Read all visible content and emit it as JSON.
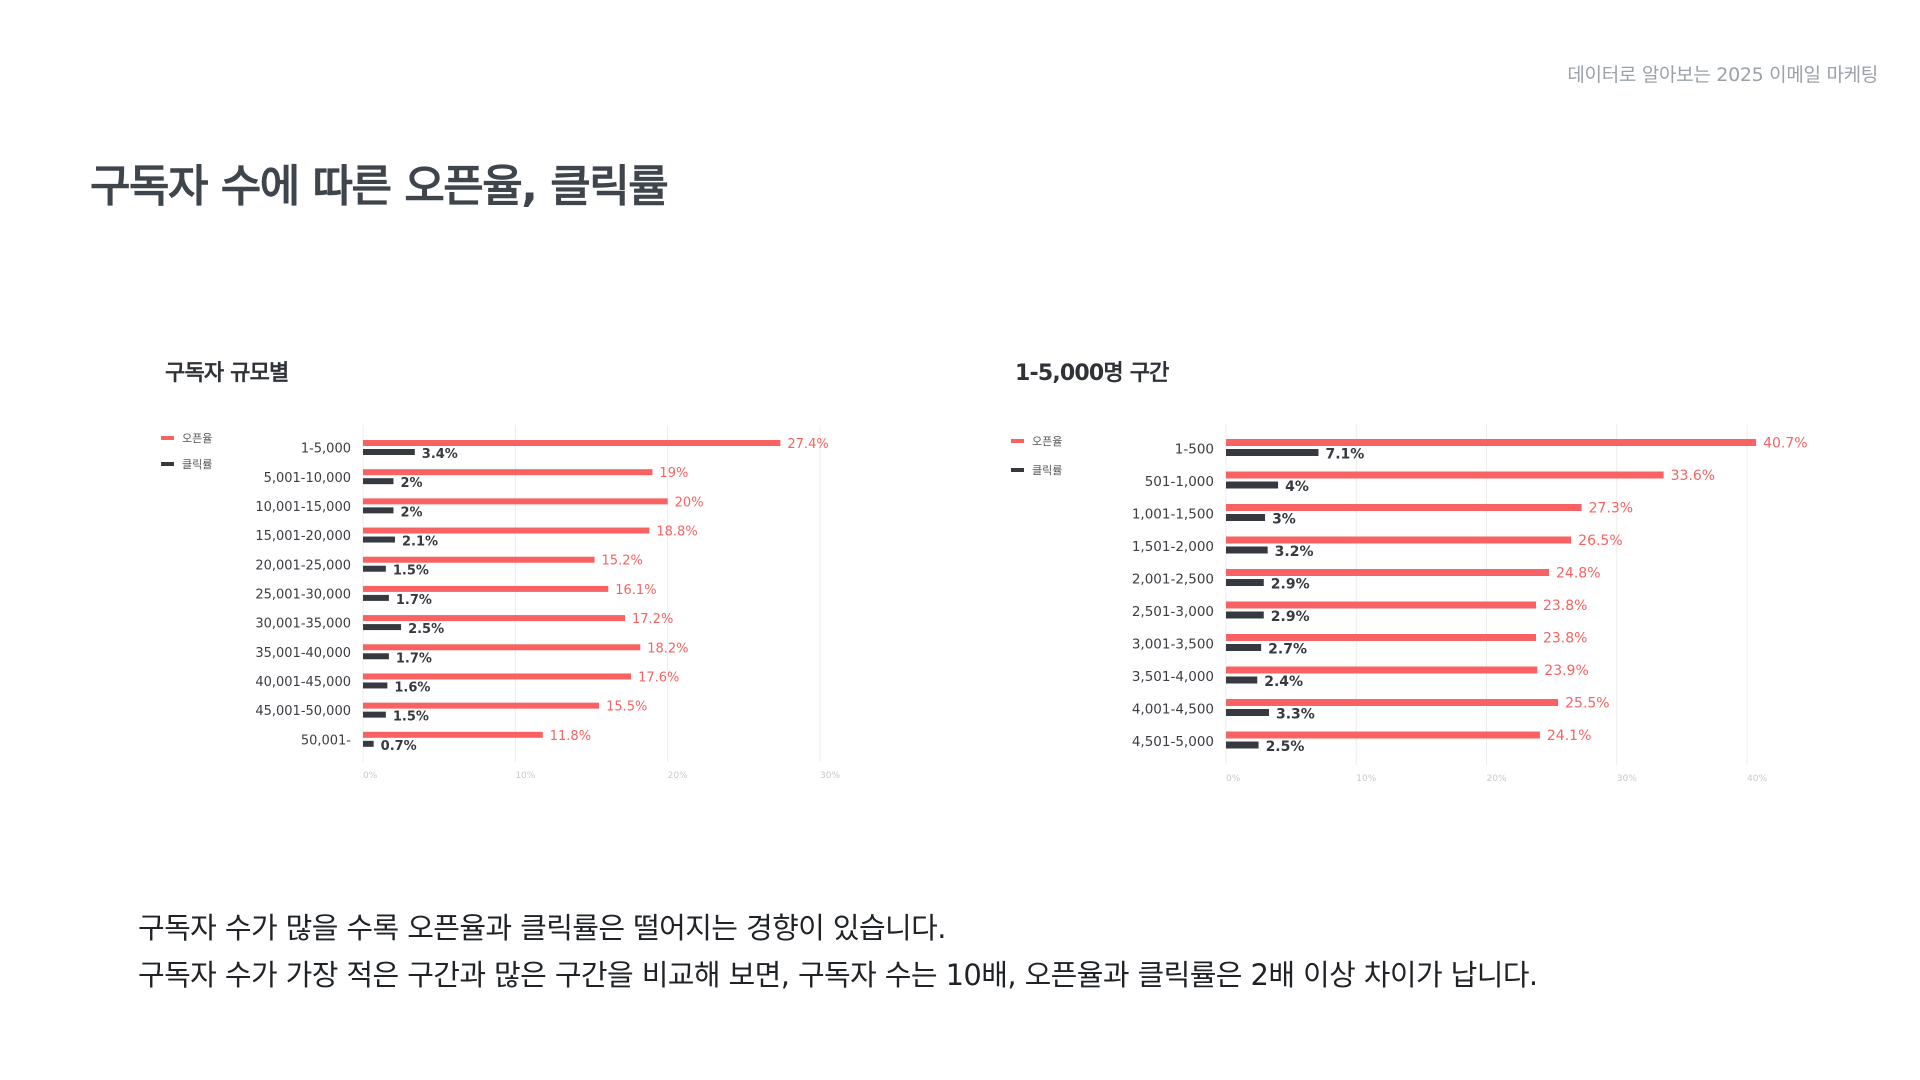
{
  "header": {
    "brand": "데이터로 알아보는 2025 이메일 마케팅"
  },
  "page": {
    "title": "구독자 수에 따른 오픈율, 클릭률"
  },
  "colors": {
    "open": "#f86262",
    "click": "#363a40",
    "grid": "#ececec",
    "tick": "#c8c8c8"
  },
  "legend": {
    "open_label": "오픈율",
    "click_label": "클릭률"
  },
  "summary": {
    "line1": "구독자 수가 많을 수록 오픈율과 클릭률은 떨어지는 경향이 있습니다.",
    "line2": "구독자 수가 가장 적은 구간과 많은 구간을 비교해 보면, 구독자 수는 10배, 오픈율과 클릭률은 2배 이상 차이가 납니다."
  },
  "chart_data": [
    {
      "type": "bar",
      "orientation": "horizontal",
      "title": "구독자 규모별",
      "categories": [
        "1-5,000",
        "5,001-10,000",
        "10,001-15,000",
        "15,001-20,000",
        "20,001-25,000",
        "25,001-30,000",
        "30,001-35,000",
        "35,001-40,000",
        "40,001-45,000",
        "45,001-50,000",
        "50,001-"
      ],
      "series": [
        {
          "name": "오픈율",
          "values": [
            27.4,
            19,
            20,
            18.8,
            15.2,
            16.1,
            17.2,
            18.2,
            17.6,
            15.5,
            11.8
          ],
          "labels": [
            "27.4%",
            "19%",
            "20%",
            "18.8%",
            "15.2%",
            "16.1%",
            "17.2%",
            "18.2%",
            "17.6%",
            "15.5%",
            "11.8%"
          ]
        },
        {
          "name": "클릭률",
          "values": [
            3.4,
            2,
            2,
            2.1,
            1.5,
            1.7,
            2.5,
            1.7,
            1.6,
            1.5,
            0.7
          ],
          "labels": [
            "3.4%",
            "2%",
            "2%",
            "2.1%",
            "1.5%",
            "1.7%",
            "2.5%",
            "1.7%",
            "1.6%",
            "1.5%",
            "0.7%"
          ]
        }
      ],
      "xlim": [
        0,
        30
      ],
      "xticks": [
        "0%",
        "10%",
        "20%",
        "30%"
      ],
      "grid": true,
      "legend": "top-left"
    },
    {
      "type": "bar",
      "orientation": "horizontal",
      "title": "1-5,000명 구간",
      "categories": [
        "1-500",
        "501-1,000",
        "1,001-1,500",
        "1,501-2,000",
        "2,001-2,500",
        "2,501-3,000",
        "3,001-3,500",
        "3,501-4,000",
        "4,001-4,500",
        "4,501-5,000"
      ],
      "series": [
        {
          "name": "오픈율",
          "values": [
            40.7,
            33.6,
            27.3,
            26.5,
            24.8,
            23.8,
            23.8,
            23.9,
            25.5,
            24.1
          ],
          "labels": [
            "40.7%",
            "33.6%",
            "27.3%",
            "26.5%",
            "24.8%",
            "23.8%",
            "23.8%",
            "23.9%",
            "25.5%",
            "24.1%"
          ]
        },
        {
          "name": "클릭률",
          "values": [
            7.1,
            4,
            3,
            3.2,
            2.9,
            2.9,
            2.7,
            2.4,
            3.3,
            2.5
          ],
          "labels": [
            "7.1%",
            "4%",
            "3%",
            "3.2%",
            "2.9%",
            "2.9%",
            "2.7%",
            "2.4%",
            "3.3%",
            "2.5%"
          ]
        }
      ],
      "xlim": [
        0,
        40
      ],
      "xticks": [
        "0%",
        "10%",
        "20%",
        "30%",
        "40%"
      ],
      "grid": true,
      "legend": "top-left"
    }
  ]
}
